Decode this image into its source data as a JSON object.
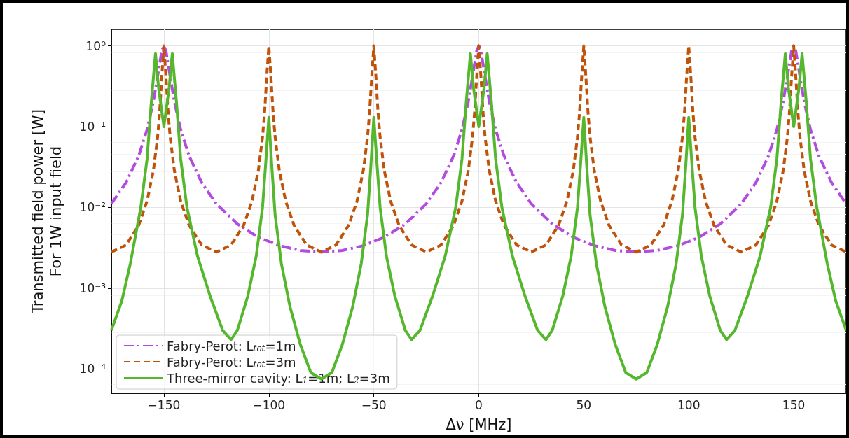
{
  "chart_data": {
    "type": "line",
    "xlabel": "Δν [MHz]",
    "ylabel": "Transmitted field power [W]\nFor 1W input field",
    "log": "y",
    "grid": true,
    "legend": "bottom left",
    "marker": "none",
    "xlim": [
      -175,
      175
    ],
    "xticks": [
      {
        "value": -150,
        "label": "−150"
      },
      {
        "value": -100,
        "label": "−100"
      },
      {
        "value": -50,
        "label": "−50"
      },
      0,
      50,
      100,
      150
    ],
    "ylim": [
      5e-05,
      1.6
    ],
    "yticks": [
      {
        "value": 0.0001,
        "label": "10⁻⁴"
      },
      {
        "value": 0.001,
        "label": "10⁻³"
      },
      {
        "value": 0.01,
        "label": "10⁻²"
      },
      {
        "value": 0.1,
        "label": "10⁻¹"
      },
      {
        "value": 1,
        "label": "10⁰"
      }
    ],
    "series": [
      {
        "name": "Fabry-Perot: L$_{tot}$=1m",
        "color": "#b44be1",
        "line_style": "dashdot",
        "x": [
          -175,
          -168,
          -162,
          -158,
          -155,
          -153,
          -151,
          -150,
          -149,
          -147,
          -145,
          -142,
          -138,
          -132,
          -125,
          -115,
          -105,
          -95,
          -85,
          -75,
          -65,
          -55,
          -45,
          -35,
          -25,
          -18,
          -12,
          -8,
          -5,
          -3,
          -1,
          0,
          1,
          3,
          5,
          8,
          12,
          18,
          25,
          35,
          45,
          55,
          65,
          75,
          85,
          95,
          105,
          115,
          125,
          132,
          138,
          142,
          145,
          147,
          149,
          150,
          151,
          153,
          155,
          158,
          162,
          168,
          175
        ],
        "values": [
          0.0111,
          0.0203,
          0.0435,
          0.092,
          0.204,
          0.416,
          0.865,
          1,
          0.865,
          0.416,
          0.204,
          0.092,
          0.0435,
          0.0203,
          0.0111,
          0.00623,
          0.00427,
          0.00336,
          0.00293,
          0.0028,
          0.00293,
          0.00336,
          0.00427,
          0.00623,
          0.0111,
          0.0203,
          0.0435,
          0.092,
          0.204,
          0.416,
          0.865,
          1,
          0.865,
          0.416,
          0.204,
          0.092,
          0.0435,
          0.0203,
          0.0111,
          0.00623,
          0.00427,
          0.00336,
          0.00293,
          0.0028,
          0.00293,
          0.00336,
          0.00427,
          0.00623,
          0.0111,
          0.0203,
          0.0435,
          0.092,
          0.204,
          0.416,
          0.865,
          1,
          0.865,
          0.416,
          0.204,
          0.092,
          0.0435,
          0.0203,
          0.0111
        ]
      },
      {
        "name": "Fabry-Perot: L$_{tot}$=3m",
        "color": "#c0530a",
        "line_style": "dashed",
        "x": [
          -175,
          -168,
          -162,
          -158,
          -155,
          -153,
          -152,
          -151,
          -150,
          -149,
          -148,
          -147,
          -145,
          -142,
          -138,
          -132,
          -125,
          -118,
          -112,
          -108,
          -105,
          -103,
          -102,
          -101,
          -100,
          -99,
          -98,
          -97,
          -95,
          -92,
          -88,
          -82,
          -75,
          -68,
          -62,
          -58,
          -55,
          -53,
          -52,
          -51,
          -50,
          -49,
          -48,
          -47,
          -45,
          -42,
          -38,
          -32,
          -25,
          -18,
          -12,
          -8,
          -5,
          -3,
          -2,
          -1,
          0,
          1,
          2,
          3,
          5,
          8,
          12,
          18,
          25,
          32,
          38,
          42,
          45,
          47,
          48,
          49,
          50,
          51,
          52,
          53,
          55,
          58,
          62,
          68,
          75,
          82,
          88,
          92,
          95,
          97,
          98,
          99,
          100,
          101,
          102,
          103,
          105,
          108,
          112,
          118,
          125,
          132,
          138,
          142,
          145,
          147,
          148,
          149,
          150,
          151,
          152,
          153,
          155,
          158,
          162,
          168,
          175
        ],
        "values": [
          0.0028,
          0.00342,
          0.006,
          0.012,
          0.0286,
          0.074,
          0.152,
          0.416,
          1,
          0.416,
          0.152,
          0.074,
          0.0286,
          0.012,
          0.006,
          0.00342,
          0.0028,
          0.00342,
          0.006,
          0.012,
          0.0286,
          0.074,
          0.152,
          0.416,
          1,
          0.416,
          0.152,
          0.074,
          0.0286,
          0.012,
          0.006,
          0.00342,
          0.0028,
          0.00342,
          0.006,
          0.012,
          0.0286,
          0.074,
          0.152,
          0.416,
          1,
          0.416,
          0.152,
          0.074,
          0.0286,
          0.012,
          0.006,
          0.00342,
          0.0028,
          0.00342,
          0.006,
          0.012,
          0.0286,
          0.074,
          0.152,
          0.416,
          1,
          0.416,
          0.152,
          0.074,
          0.0286,
          0.012,
          0.006,
          0.00342,
          0.0028,
          0.00342,
          0.006,
          0.012,
          0.0286,
          0.074,
          0.152,
          0.416,
          1,
          0.416,
          0.152,
          0.074,
          0.0286,
          0.012,
          0.006,
          0.00342,
          0.0028,
          0.00342,
          0.006,
          0.012,
          0.0286,
          0.074,
          0.152,
          0.416,
          1,
          0.416,
          0.152,
          0.074,
          0.0286,
          0.012,
          0.006,
          0.00342,
          0.0028,
          0.00342,
          0.006,
          0.012,
          0.0286,
          0.074,
          0.152,
          0.416,
          1,
          0.416,
          0.152,
          0.074,
          0.0286,
          0.012,
          0.006,
          0.00342,
          0.0028
        ]
      },
      {
        "name": "Three-mirror cavity: L$_{1}$=1m; L$_{2}$=3m",
        "color": "#55b72d",
        "line_style": "solid",
        "x": [
          -175,
          -170,
          -166,
          -161,
          -158,
          -156,
          -154,
          -152.5,
          -150,
          -147.5,
          -146,
          -144,
          -142,
          -139,
          -134,
          -128,
          -122,
          -118,
          -115,
          -110,
          -106,
          -103,
          -101.5,
          -100,
          -98.5,
          -97,
          -94,
          -90,
          -85,
          -80,
          -75,
          -70,
          -65,
          -60,
          -56,
          -53,
          -51.5,
          -50,
          -48.5,
          -47,
          -44,
          -40,
          -35,
          -32,
          -28,
          -22,
          -16,
          -11,
          -8,
          -6,
          -4,
          -2.5,
          0,
          2.5,
          4,
          6,
          8,
          11,
          16,
          22,
          28,
          32,
          35,
          40,
          44,
          47,
          48.5,
          50,
          51.5,
          53,
          56,
          60,
          65,
          70,
          75,
          80,
          85,
          90,
          94,
          97,
          98.5,
          100,
          101.5,
          103,
          106,
          110,
          115,
          118,
          122,
          128,
          134,
          139,
          142,
          144,
          146,
          147.5,
          150,
          152.5,
          154,
          156,
          158,
          161,
          166,
          170,
          175
        ],
        "values": [
          0.0003,
          0.0007,
          0.002,
          0.01,
          0.04,
          0.2,
          0.8,
          0.3,
          0.1,
          0.3,
          0.8,
          0.2,
          0.04,
          0.01,
          0.0025,
          0.0008,
          0.0003,
          0.00023,
          0.0003,
          0.0008,
          0.0025,
          0.01,
          0.035,
          0.13,
          0.03,
          0.008,
          0.002,
          0.0006,
          0.0002,
          9e-05,
          7.5e-05,
          9e-05,
          0.0002,
          0.0006,
          0.002,
          0.008,
          0.03,
          0.13,
          0.035,
          0.01,
          0.0025,
          0.0008,
          0.0003,
          0.00023,
          0.0003,
          0.0008,
          0.0025,
          0.01,
          0.04,
          0.2,
          0.8,
          0.3,
          0.1,
          0.3,
          0.8,
          0.2,
          0.04,
          0.01,
          0.0025,
          0.0008,
          0.0003,
          0.00023,
          0.0003,
          0.0008,
          0.0025,
          0.01,
          0.035,
          0.13,
          0.03,
          0.008,
          0.002,
          0.0006,
          0.0002,
          9e-05,
          7.5e-05,
          9e-05,
          0.0002,
          0.0006,
          0.002,
          0.008,
          0.03,
          0.13,
          0.035,
          0.01,
          0.0025,
          0.0008,
          0.0003,
          0.00023,
          0.0003,
          0.0008,
          0.0025,
          0.01,
          0.04,
          0.2,
          0.8,
          0.3,
          0.1,
          0.3,
          0.8,
          0.2,
          0.04,
          0.01,
          0.002,
          0.0007,
          0.0003
        ]
      }
    ]
  }
}
